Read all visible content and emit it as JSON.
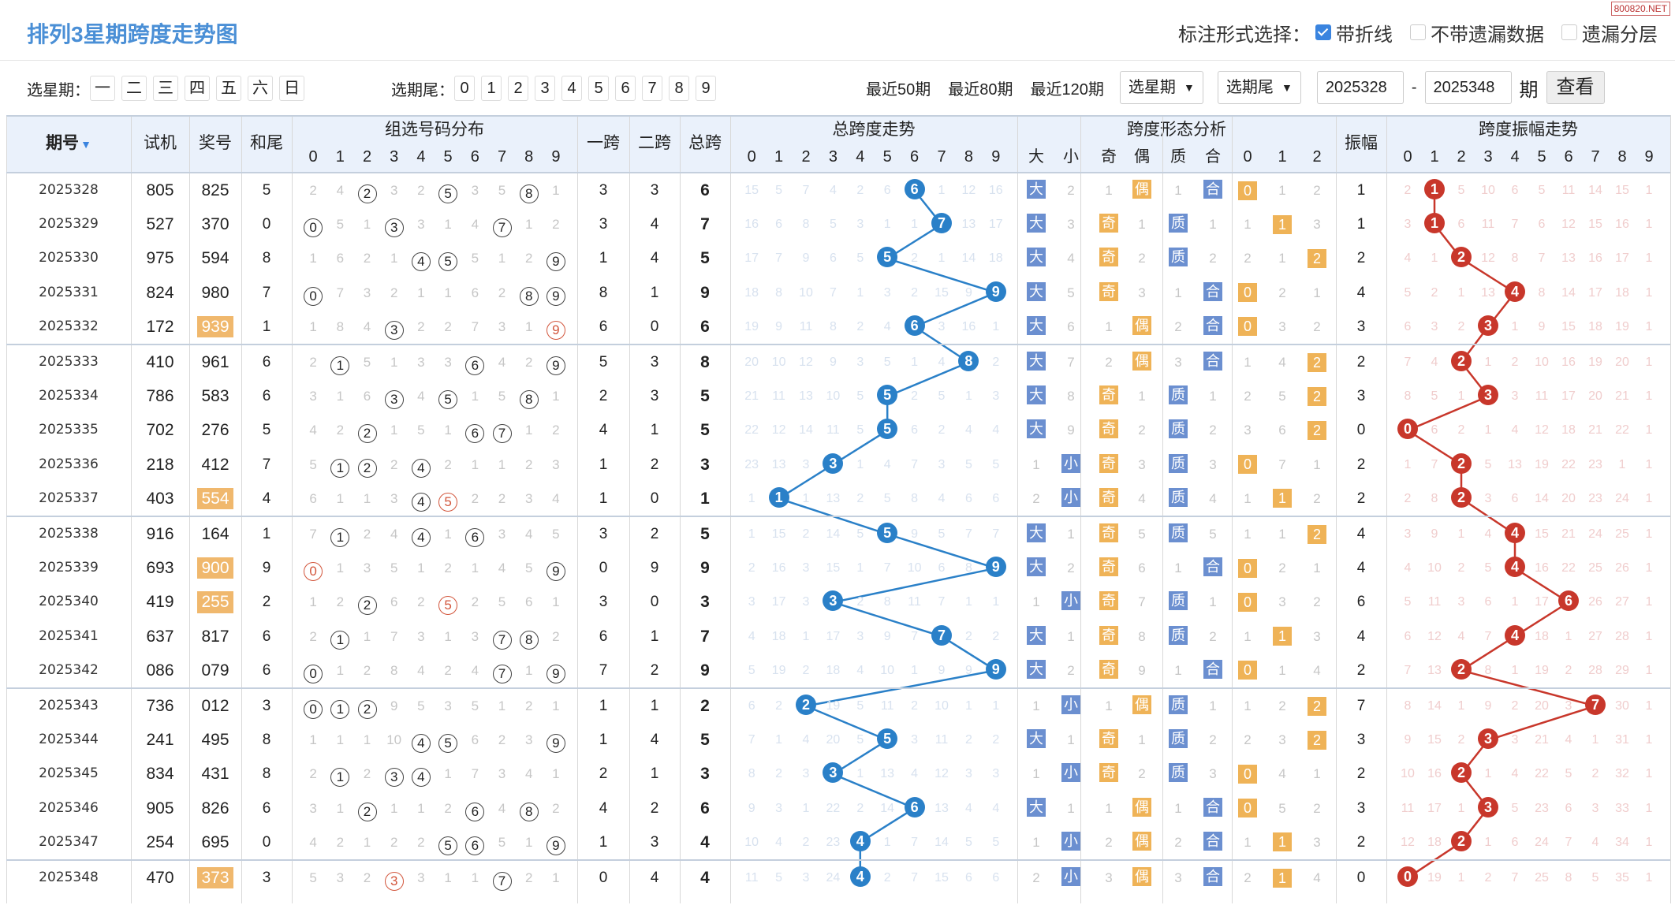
{
  "page": {
    "title": "排列3星期跨度走势图",
    "watermark": "800820.NET"
  },
  "format": {
    "label": "标注形式选择：",
    "options": [
      {
        "label": "带折线",
        "checked": true
      },
      {
        "label": "不带遗漏数据",
        "checked": false
      },
      {
        "label": "遗漏分层",
        "checked": false
      }
    ]
  },
  "filter": {
    "weekday_label": "选星期：",
    "weekdays": [
      "一",
      "二",
      "三",
      "四",
      "五",
      "六",
      "日"
    ],
    "tail_label": "选期尾：",
    "tails": [
      "0",
      "1",
      "2",
      "3",
      "4",
      "5",
      "6",
      "7",
      "8",
      "9"
    ],
    "recent": [
      "最近50期",
      "最近80期",
      "最近120期"
    ],
    "select_weekday": "选星期",
    "select_tail": "选期尾",
    "from_issue": "2025328",
    "dash": "-",
    "to_issue": "2025348",
    "period_word": "期",
    "query_button": "查看"
  },
  "headers": {
    "issue": "期号",
    "trial": "试机",
    "prize": "奖号",
    "sum_tail": "和尾",
    "group_dist": "组选号码分布",
    "span1": "一跨",
    "span2": "二跨",
    "total_span": "总跨",
    "span_trend": "总跨度走势",
    "span_form": "跨度形态分析",
    "form_cols": [
      "大",
      "小",
      "奇",
      "偶",
      "质",
      "合",
      "0",
      "1",
      "2"
    ],
    "amplitude": "振幅",
    "amp_trend": "跨度振幅走势",
    "digits": [
      "0",
      "1",
      "2",
      "3",
      "4",
      "5",
      "6",
      "7",
      "8",
      "9"
    ]
  },
  "colors": {
    "header_bg": "#eaf1fb",
    "title": "#4a8fd6",
    "blue_ball": "#2a80c8",
    "red_ball": "#c8372b",
    "form_blue": "#6b8fd0",
    "form_orange": "#efb357",
    "highlight": "#f0b86d"
  },
  "rows": [
    {
      "issue": "2025328",
      "trial": "805",
      "prize": "825",
      "hl": false,
      "tail": "5",
      "dist": [
        "2",
        "4",
        "②",
        "3",
        "2",
        "⑤",
        "3",
        "5",
        "⑧",
        "1"
      ],
      "s1": "3",
      "s2": "3",
      "span": "6",
      "trend": [
        "15",
        "5",
        "7",
        "4",
        "2",
        "6",
        "6",
        "1",
        "12",
        "16"
      ],
      "form": [
        "大",
        "2",
        "1",
        "偶",
        "1",
        "合",
        "0",
        "1",
        "2"
      ],
      "amp": "1",
      "amptr": [
        "2",
        "1",
        "5",
        "10",
        "6",
        "5",
        "11",
        "14",
        "15",
        "1"
      ]
    },
    {
      "issue": "2025329",
      "trial": "527",
      "prize": "370",
      "hl": false,
      "tail": "0",
      "dist": [
        "⓪",
        "5",
        "1",
        "③",
        "3",
        "1",
        "4",
        "⑦",
        "1",
        "2"
      ],
      "s1": "3",
      "s2": "4",
      "span": "7",
      "trend": [
        "16",
        "6",
        "8",
        "5",
        "3",
        "1",
        "1",
        "7",
        "13",
        "17"
      ],
      "form": [
        "大",
        "3",
        "奇",
        "1",
        "质",
        "1",
        "1",
        "1",
        "3"
      ],
      "amp": "1",
      "amptr": [
        "3",
        "1",
        "6",
        "11",
        "7",
        "6",
        "12",
        "15",
        "16",
        "1"
      ]
    },
    {
      "issue": "2025330",
      "trial": "975",
      "prize": "594",
      "hl": false,
      "tail": "8",
      "dist": [
        "1",
        "6",
        "2",
        "1",
        "④",
        "⑤",
        "5",
        "1",
        "2",
        "⑨"
      ],
      "s1": "1",
      "s2": "4",
      "span": "5",
      "trend": [
        "17",
        "7",
        "9",
        "6",
        "5",
        "5",
        "2",
        "1",
        "14",
        "18"
      ],
      "form": [
        "大",
        "4",
        "奇",
        "2",
        "质",
        "2",
        "2",
        "1",
        "2"
      ],
      "amp": "2",
      "amptr": [
        "4",
        "1",
        "2",
        "12",
        "8",
        "7",
        "13",
        "16",
        "17",
        "1"
      ]
    },
    {
      "issue": "2025331",
      "trial": "824",
      "prize": "980",
      "hl": false,
      "tail": "7",
      "dist": [
        "⓪",
        "7",
        "3",
        "2",
        "1",
        "1",
        "6",
        "2",
        "⑧",
        "⑨"
      ],
      "s1": "8",
      "s2": "1",
      "span": "9",
      "trend": [
        "18",
        "8",
        "10",
        "7",
        "1",
        "3",
        "2",
        "15",
        "9",
        "9"
      ],
      "form": [
        "大",
        "5",
        "奇",
        "3",
        "1",
        "合",
        "0",
        "2",
        "1"
      ],
      "amp": "4",
      "amptr": [
        "5",
        "2",
        "1",
        "13",
        "4",
        "8",
        "14",
        "17",
        "18",
        "1"
      ]
    },
    {
      "issue": "2025332",
      "trial": "172",
      "prize": "939",
      "hl": true,
      "tail": "1",
      "dist": [
        "1",
        "8",
        "4",
        "③",
        "2",
        "2",
        "7",
        "3",
        "1",
        "⑨"
      ],
      "s1": "6",
      "s2": "0",
      "span": "6",
      "trend": [
        "19",
        "9",
        "11",
        "8",
        "2",
        "4",
        "6",
        "3",
        "16",
        "1"
      ],
      "form": [
        "大",
        "6",
        "1",
        "偶",
        "2",
        "合",
        "0",
        "3",
        "2"
      ],
      "amp": "3",
      "amptr": [
        "6",
        "3",
        "2",
        "3",
        "1",
        "9",
        "15",
        "18",
        "19",
        "1"
      ]
    },
    {
      "issue": "2025333",
      "trial": "410",
      "prize": "961",
      "hl": false,
      "tail": "6",
      "dist": [
        "2",
        "①",
        "5",
        "1",
        "3",
        "3",
        "⑥",
        "4",
        "2",
        "⑨"
      ],
      "s1": "5",
      "s2": "3",
      "span": "8",
      "trend": [
        "20",
        "10",
        "12",
        "9",
        "3",
        "5",
        "1",
        "4",
        "8",
        "2"
      ],
      "form": [
        "大",
        "7",
        "2",
        "偶",
        "3",
        "合",
        "1",
        "4",
        "2"
      ],
      "amp": "2",
      "amptr": [
        "7",
        "4",
        "2",
        "1",
        "2",
        "10",
        "16",
        "19",
        "20",
        "1"
      ]
    },
    {
      "issue": "2025334",
      "trial": "786",
      "prize": "583",
      "hl": false,
      "tail": "6",
      "dist": [
        "3",
        "1",
        "6",
        "③",
        "4",
        "⑤",
        "1",
        "5",
        "⑧",
        "1"
      ],
      "s1": "2",
      "s2": "3",
      "span": "5",
      "trend": [
        "21",
        "11",
        "13",
        "10",
        "5",
        "5",
        "2",
        "5",
        "1",
        "3"
      ],
      "form": [
        "大",
        "8",
        "奇",
        "1",
        "质",
        "1",
        "2",
        "5",
        "2"
      ],
      "amp": "3",
      "amptr": [
        "8",
        "5",
        "1",
        "3",
        "3",
        "11",
        "17",
        "20",
        "21",
        "1"
      ]
    },
    {
      "issue": "2025335",
      "trial": "702",
      "prize": "276",
      "hl": false,
      "tail": "5",
      "dist": [
        "4",
        "2",
        "②",
        "1",
        "5",
        "1",
        "⑥",
        "⑦",
        "1",
        "2"
      ],
      "s1": "4",
      "s2": "1",
      "span": "5",
      "trend": [
        "22",
        "12",
        "14",
        "11",
        "5",
        "3",
        "6",
        "2",
        "4",
        "4"
      ],
      "form": [
        "大",
        "9",
        "奇",
        "2",
        "质",
        "2",
        "3",
        "6",
        "2"
      ],
      "amp": "0",
      "amptr": [
        "0",
        "6",
        "2",
        "1",
        "4",
        "12",
        "18",
        "21",
        "22",
        "1"
      ]
    },
    {
      "issue": "2025336",
      "trial": "218",
      "prize": "412",
      "hl": false,
      "tail": "7",
      "dist": [
        "5",
        "①",
        "②",
        "2",
        "④",
        "2",
        "1",
        "1",
        "2",
        "3"
      ],
      "s1": "1",
      "s2": "2",
      "span": "3",
      "trend": [
        "23",
        "13",
        "3",
        "12",
        "1",
        "4",
        "7",
        "3",
        "5",
        "5"
      ],
      "form": [
        "1",
        "小",
        "奇",
        "3",
        "质",
        "3",
        "0",
        "7",
        "1"
      ],
      "amp": "2",
      "amptr": [
        "1",
        "7",
        "2",
        "5",
        "13",
        "19",
        "22",
        "23",
        "1",
        "1"
      ]
    },
    {
      "issue": "2025337",
      "trial": "403",
      "prize": "554",
      "hl": true,
      "tail": "4",
      "dist": [
        "6",
        "1",
        "1",
        "3",
        "④",
        "⑤",
        "2",
        "2",
        "3",
        "4"
      ],
      "s1": "1",
      "s2": "0",
      "span": "1",
      "trend": [
        "1",
        "14",
        "1",
        "13",
        "2",
        "5",
        "8",
        "4",
        "6",
        "6"
      ],
      "form": [
        "2",
        "小",
        "奇",
        "4",
        "质",
        "4",
        "1",
        "1",
        "2"
      ],
      "amp": "2",
      "amptr": [
        "2",
        "8",
        "2",
        "3",
        "6",
        "14",
        "20",
        "23",
        "24",
        "1"
      ]
    },
    {
      "issue": "2025338",
      "trial": "916",
      "prize": "164",
      "hl": false,
      "tail": "1",
      "dist": [
        "7",
        "①",
        "2",
        "4",
        "④",
        "1",
        "⑥",
        "3",
        "4",
        "5"
      ],
      "s1": "3",
      "s2": "2",
      "span": "5",
      "trend": [
        "1",
        "15",
        "2",
        "14",
        "5",
        "6",
        "9",
        "5",
        "7",
        "7"
      ],
      "form": [
        "大",
        "1",
        "奇",
        "5",
        "质",
        "5",
        "1",
        "1",
        "2"
      ],
      "amp": "4",
      "amptr": [
        "3",
        "9",
        "1",
        "4",
        "4",
        "15",
        "21",
        "24",
        "25",
        "1"
      ]
    },
    {
      "issue": "2025339",
      "trial": "693",
      "prize": "900",
      "hl": true,
      "tail": "9",
      "dist": [
        "⓪",
        "1",
        "3",
        "5",
        "1",
        "2",
        "1",
        "4",
        "5",
        "⑨"
      ],
      "s1": "0",
      "s2": "9",
      "span": "9",
      "trend": [
        "2",
        "16",
        "3",
        "15",
        "1",
        "7",
        "10",
        "6",
        "8",
        "9"
      ],
      "form": [
        "大",
        "2",
        "奇",
        "6",
        "1",
        "合",
        "0",
        "2",
        "1"
      ],
      "amp": "4",
      "amptr": [
        "4",
        "10",
        "2",
        "5",
        "4",
        "16",
        "22",
        "25",
        "26",
        "1"
      ]
    },
    {
      "issue": "2025340",
      "trial": "419",
      "prize": "255",
      "hl": true,
      "tail": "2",
      "dist": [
        "1",
        "2",
        "②",
        "6",
        "2",
        "⑤",
        "2",
        "5",
        "6",
        "1"
      ],
      "s1": "3",
      "s2": "0",
      "span": "3",
      "trend": [
        "3",
        "17",
        "3",
        "16",
        "2",
        "8",
        "11",
        "7",
        "1",
        "1"
      ],
      "form": [
        "1",
        "小",
        "奇",
        "7",
        "质",
        "1",
        "0",
        "3",
        "2"
      ],
      "amp": "6",
      "amptr": [
        "5",
        "11",
        "3",
        "6",
        "1",
        "17",
        "6",
        "26",
        "27",
        "1"
      ]
    },
    {
      "issue": "2025341",
      "trial": "637",
      "prize": "817",
      "hl": false,
      "tail": "6",
      "dist": [
        "2",
        "①",
        "1",
        "7",
        "3",
        "1",
        "3",
        "⑦",
        "⑧",
        "2"
      ],
      "s1": "6",
      "s2": "1",
      "span": "7",
      "trend": [
        "4",
        "18",
        "1",
        "17",
        "3",
        "9",
        "7",
        "8",
        "2",
        "2"
      ],
      "form": [
        "大",
        "1",
        "奇",
        "8",
        "质",
        "2",
        "1",
        "1",
        "3"
      ],
      "amp": "4",
      "amptr": [
        "6",
        "12",
        "4",
        "7",
        "4",
        "18",
        "1",
        "27",
        "28",
        "1"
      ]
    },
    {
      "issue": "2025342",
      "trial": "086",
      "prize": "079",
      "hl": false,
      "tail": "6",
      "dist": [
        "⓪",
        "1",
        "2",
        "8",
        "4",
        "2",
        "4",
        "⑦",
        "1",
        "⑨"
      ],
      "s1": "7",
      "s2": "2",
      "span": "9",
      "trend": [
        "5",
        "19",
        "2",
        "18",
        "4",
        "10",
        "1",
        "9",
        "9",
        "9"
      ],
      "form": [
        "大",
        "2",
        "奇",
        "9",
        "1",
        "合",
        "0",
        "1",
        "4"
      ],
      "amp": "2",
      "amptr": [
        "7",
        "13",
        "2",
        "8",
        "1",
        "19",
        "2",
        "28",
        "29",
        "1"
      ]
    },
    {
      "issue": "2025343",
      "trial": "736",
      "prize": "012",
      "hl": false,
      "tail": "3",
      "dist": [
        "⓪",
        "①",
        "②",
        "9",
        "5",
        "3",
        "5",
        "1",
        "2",
        "1"
      ],
      "s1": "1",
      "s2": "1",
      "span": "2",
      "trend": [
        "6",
        "2",
        "3",
        "19",
        "5",
        "11",
        "2",
        "10",
        "1",
        "1"
      ],
      "form": [
        "1",
        "小",
        "1",
        "偶",
        "质",
        "1",
        "1",
        "2",
        "2"
      ],
      "amp": "7",
      "amptr": [
        "8",
        "14",
        "1",
        "9",
        "2",
        "20",
        "3",
        "7",
        "30",
        "1"
      ]
    },
    {
      "issue": "2025344",
      "trial": "241",
      "prize": "495",
      "hl": false,
      "tail": "8",
      "dist": [
        "1",
        "1",
        "1",
        "10",
        "④",
        "⑤",
        "6",
        "2",
        "3",
        "⑨"
      ],
      "s1": "1",
      "s2": "4",
      "span": "5",
      "trend": [
        "7",
        "1",
        "4",
        "20",
        "5",
        "12",
        "3",
        "11",
        "2",
        "2"
      ],
      "form": [
        "大",
        "1",
        "奇",
        "1",
        "质",
        "2",
        "2",
        "3",
        "2"
      ],
      "amp": "3",
      "amptr": [
        "9",
        "15",
        "2",
        "3",
        "3",
        "21",
        "4",
        "1",
        "31",
        "1"
      ]
    },
    {
      "issue": "2025345",
      "trial": "834",
      "prize": "431",
      "hl": false,
      "tail": "8",
      "dist": [
        "2",
        "①",
        "2",
        "③",
        "④",
        "1",
        "7",
        "3",
        "4",
        "1"
      ],
      "s1": "2",
      "s2": "1",
      "span": "3",
      "trend": [
        "8",
        "2",
        "3",
        "21",
        "1",
        "13",
        "4",
        "12",
        "3",
        "3"
      ],
      "form": [
        "1",
        "小",
        "奇",
        "2",
        "质",
        "3",
        "0",
        "4",
        "1"
      ],
      "amp": "2",
      "amptr": [
        "10",
        "16",
        "2",
        "1",
        "4",
        "22",
        "5",
        "2",
        "32",
        "1"
      ]
    },
    {
      "issue": "2025346",
      "trial": "905",
      "prize": "826",
      "hl": false,
      "tail": "6",
      "dist": [
        "3",
        "1",
        "②",
        "1",
        "1",
        "2",
        "⑥",
        "4",
        "⑧",
        "2"
      ],
      "s1": "4",
      "s2": "2",
      "span": "6",
      "trend": [
        "9",
        "3",
        "1",
        "22",
        "2",
        "14",
        "6",
        "13",
        "4",
        "4"
      ],
      "form": [
        "大",
        "1",
        "1",
        "偶",
        "1",
        "合",
        "0",
        "5",
        "2"
      ],
      "amp": "3",
      "amptr": [
        "11",
        "17",
        "1",
        "3",
        "5",
        "23",
        "6",
        "3",
        "33",
        "1"
      ]
    },
    {
      "issue": "2025347",
      "trial": "254",
      "prize": "695",
      "hl": false,
      "tail": "0",
      "dist": [
        "4",
        "2",
        "1",
        "2",
        "2",
        "⑤",
        "⑥",
        "5",
        "1",
        "⑨"
      ],
      "s1": "1",
      "s2": "3",
      "span": "4",
      "trend": [
        "10",
        "4",
        "2",
        "23",
        "4",
        "1",
        "7",
        "14",
        "5",
        "5"
      ],
      "form": [
        "1",
        "小",
        "2",
        "偶",
        "2",
        "合",
        "1",
        "1",
        "3"
      ],
      "amp": "2",
      "amptr": [
        "12",
        "18",
        "2",
        "1",
        "6",
        "24",
        "7",
        "4",
        "34",
        "1"
      ]
    },
    {
      "issue": "2025348",
      "trial": "470",
      "prize": "373",
      "hl": true,
      "tail": "3",
      "dist": [
        "5",
        "3",
        "2",
        "③",
        "3",
        "1",
        "1",
        "⑦",
        "2",
        "1"
      ],
      "s1": "0",
      "s2": "4",
      "span": "4",
      "trend": [
        "11",
        "5",
        "3",
        "24",
        "4",
        "2",
        "7",
        "15",
        "6",
        "6"
      ],
      "form": [
        "2",
        "小",
        "3",
        "偶",
        "3",
        "合",
        "2",
        "1",
        "4"
      ],
      "amp": "0",
      "amptr": [
        "0",
        "19",
        "1",
        "2",
        "7",
        "25",
        "8",
        "5",
        "35",
        "1"
      ]
    }
  ]
}
